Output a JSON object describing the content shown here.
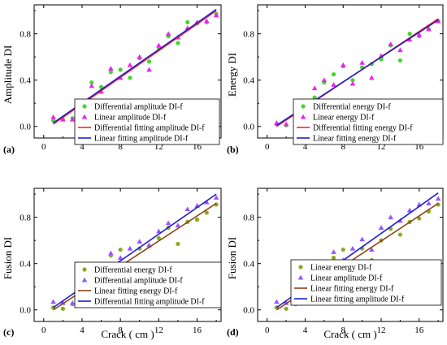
{
  "colors": {
    "green": "#44d62c",
    "magenta": "#ee22ee",
    "violet": "#9955ff",
    "olive": "#8aaa22",
    "red": "#ff2222",
    "blue": "#1e1ed2",
    "brown": "#8b4513"
  },
  "chart_data": [
    {
      "type": "scatter",
      "panel_label": "(a)",
      "xlabel": "",
      "ylabel": "Amplitude DI",
      "xlim": [
        -1,
        18.5
      ],
      "ylim": [
        -0.1,
        1.05
      ],
      "xticks": [
        0,
        4,
        8,
        12,
        16
      ],
      "yticks": [
        0.0,
        0.4,
        0.8
      ],
      "tick_labels_x": [
        "0",
        "4",
        "8",
        "12",
        "16"
      ],
      "tick_labels_y": [
        "0.0",
        "0.4",
        "0.8"
      ],
      "legend_position": "bottom-right",
      "series": [
        {
          "name": "Differential  amplitude DI-f",
          "kind": "circle",
          "color": "#44d62c",
          "x": [
            1,
            2,
            3,
            4,
            5,
            6,
            7,
            8,
            9,
            10,
            11,
            12,
            13,
            14,
            15,
            16,
            17,
            18
          ],
          "y": [
            0.05,
            0.06,
            0.07,
            0.2,
            0.38,
            0.34,
            0.47,
            0.49,
            0.42,
            0.59,
            0.56,
            0.68,
            0.78,
            0.72,
            0.9,
            0.89,
            0.9,
            0.97
          ]
        },
        {
          "name": "Linear  amplitude DI-f",
          "kind": "triangle",
          "color": "#ee22ee",
          "x": [
            1,
            2,
            3,
            4,
            5,
            6,
            7,
            8,
            9,
            10,
            11,
            12,
            13,
            14,
            15,
            16,
            17,
            18
          ],
          "y": [
            0.08,
            0.06,
            0.06,
            0.22,
            0.35,
            0.3,
            0.5,
            0.42,
            0.53,
            0.6,
            0.49,
            0.7,
            0.8,
            0.77,
            0.85,
            0.9,
            0.91,
            0.96
          ]
        },
        {
          "name": "Differential fitting amplitude DI-f",
          "kind": "line",
          "color": "#ff2222",
          "x": [
            1,
            18
          ],
          "y": [
            0.02,
            1.0
          ]
        },
        {
          "name": "Linear fitting amplitude DI-f",
          "kind": "line",
          "color": "#1e1ed2",
          "x": [
            1,
            18
          ],
          "y": [
            0.03,
            1.01
          ]
        }
      ]
    },
    {
      "type": "scatter",
      "panel_label": "(b)",
      "xlabel": "",
      "ylabel": "Energy DI",
      "xlim": [
        -1,
        18.5
      ],
      "ylim": [
        -0.1,
        1.05
      ],
      "xticks": [
        0,
        4,
        8,
        12,
        16
      ],
      "yticks": [
        0.0,
        0.4,
        0.8
      ],
      "tick_labels_x": [
        "0",
        "4",
        "8",
        "12",
        "16"
      ],
      "tick_labels_y": [
        "0.0",
        "0.4",
        "0.8"
      ],
      "legend_position": "bottom-right",
      "series": [
        {
          "name": "Differential  energy DI-f",
          "kind": "circle",
          "color": "#44d62c",
          "x": [
            1,
            2,
            3,
            4,
            5,
            6,
            7,
            8,
            9,
            10,
            11,
            12,
            13,
            14,
            15,
            16,
            17,
            18
          ],
          "y": [
            0.02,
            0.01,
            0.05,
            0.08,
            0.25,
            0.38,
            0.45,
            0.52,
            0.4,
            0.51,
            0.54,
            0.58,
            0.7,
            0.57,
            0.8,
            0.78,
            0.84,
            0.91
          ]
        },
        {
          "name": "Linear  energy DI-f",
          "kind": "triangle",
          "color": "#ee22ee",
          "x": [
            1,
            2,
            3,
            4,
            5,
            6,
            7,
            8,
            9,
            10,
            11,
            12,
            13,
            14,
            15,
            16,
            17,
            18
          ],
          "y": [
            0.03,
            0.02,
            0.06,
            0.1,
            0.33,
            0.4,
            0.36,
            0.53,
            0.37,
            0.55,
            0.42,
            0.61,
            0.71,
            0.66,
            0.75,
            0.79,
            0.84,
            0.91
          ]
        },
        {
          "name": "Differential  fitting energy DI-f",
          "kind": "line",
          "color": "#ff2222",
          "x": [
            1,
            18
          ],
          "y": [
            0.0,
            0.93
          ]
        },
        {
          "name": "Linear fitting energy DI-f",
          "kind": "line",
          "color": "#1e1ed2",
          "x": [
            1,
            18
          ],
          "y": [
            0.01,
            0.92
          ]
        }
      ]
    },
    {
      "type": "scatter",
      "panel_label": "(c)",
      "xlabel": "Crack ( cm )",
      "ylabel": "Fusion DI",
      "xlim": [
        -1,
        18.5
      ],
      "ylim": [
        -0.1,
        1.05
      ],
      "xticks": [
        0,
        4,
        8,
        12,
        16
      ],
      "yticks": [
        0.0,
        0.4,
        0.8
      ],
      "tick_labels_x": [
        "0",
        "4",
        "8",
        "12",
        "16"
      ],
      "tick_labels_y": [
        "0.0",
        "0.4",
        "0.8"
      ],
      "legend_position": "bottom-right",
      "series": [
        {
          "name": "Differential  energy DI-f",
          "kind": "circle",
          "color": "#8aaa22",
          "x": [
            1,
            2,
            3,
            4,
            5,
            6,
            7,
            8,
            9,
            10,
            11,
            12,
            13,
            14,
            15,
            16,
            17,
            18
          ],
          "y": [
            0.02,
            0.01,
            0.05,
            0.07,
            0.32,
            0.35,
            0.47,
            0.52,
            0.39,
            0.53,
            0.55,
            0.62,
            0.71,
            0.57,
            0.76,
            0.78,
            0.84,
            0.91
          ]
        },
        {
          "name": "Differential  amplitude DI-f",
          "kind": "triangle",
          "color": "#9955ff",
          "x": [
            1,
            2,
            3,
            4,
            5,
            6,
            7,
            8,
            9,
            10,
            11,
            12,
            13,
            14,
            15,
            16,
            17,
            18
          ],
          "y": [
            0.07,
            0.06,
            0.06,
            0.18,
            0.38,
            0.3,
            0.49,
            0.45,
            0.53,
            0.59,
            0.56,
            0.68,
            0.75,
            0.73,
            0.87,
            0.9,
            0.93,
            0.97
          ]
        },
        {
          "name": "Linear  fitting energy DI-f",
          "kind": "line",
          "color": "#8b4513",
          "x": [
            1,
            18
          ],
          "y": [
            0.0,
            0.92
          ]
        },
        {
          "name": "Differential  fitting amplitude DI-f",
          "kind": "line",
          "color": "#1e1ed2",
          "x": [
            1,
            18
          ],
          "y": [
            0.02,
            1.0
          ]
        }
      ]
    },
    {
      "type": "scatter",
      "panel_label": "(d)",
      "xlabel": "Crack ( cm )",
      "ylabel": "Fusion DI",
      "xlim": [
        -1,
        18.5
      ],
      "ylim": [
        -0.1,
        1.05
      ],
      "xticks": [
        0,
        4,
        8,
        12,
        16
      ],
      "yticks": [
        0.0,
        0.4,
        0.8
      ],
      "tick_labels_x": [
        "0",
        "4",
        "8",
        "12",
        "16"
      ],
      "tick_labels_y": [
        "0.0",
        "0.4",
        "0.8"
      ],
      "legend_position": "bottom-right",
      "series": [
        {
          "name": "Linear  energy DI-f",
          "kind": "circle",
          "color": "#8aaa22",
          "x": [
            1,
            2,
            3,
            4,
            5,
            6,
            7,
            8,
            9,
            10,
            11,
            12,
            13,
            14,
            15,
            16,
            17,
            18
          ],
          "y": [
            0.02,
            0.01,
            0.05,
            0.09,
            0.33,
            0.38,
            0.45,
            0.52,
            0.38,
            0.53,
            0.43,
            0.6,
            0.7,
            0.65,
            0.76,
            0.79,
            0.85,
            0.91
          ]
        },
        {
          "name": "Linear  amplitude DI-f",
          "kind": "triangle",
          "color": "#9955ff",
          "x": [
            1,
            2,
            3,
            4,
            5,
            6,
            7,
            8,
            9,
            10,
            11,
            12,
            13,
            14,
            15,
            16,
            17,
            18
          ],
          "y": [
            0.07,
            0.06,
            0.06,
            0.2,
            0.36,
            0.3,
            0.5,
            0.43,
            0.53,
            0.61,
            0.52,
            0.71,
            0.8,
            0.77,
            0.86,
            0.91,
            0.92,
            0.96
          ]
        },
        {
          "name": "Linear  fitting energy DI-f",
          "kind": "line",
          "color": "#8b4513",
          "x": [
            1,
            18
          ],
          "y": [
            0.0,
            0.92
          ]
        },
        {
          "name": "Linear fitting amplitude DI-f",
          "kind": "line",
          "color": "#1e1ed2",
          "x": [
            1,
            18
          ],
          "y": [
            0.02,
            1.01
          ]
        }
      ]
    }
  ]
}
